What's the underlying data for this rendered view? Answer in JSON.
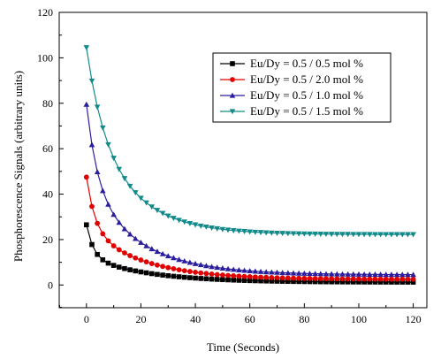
{
  "chart_data": {
    "type": "line",
    "xlabel": "Time (Seconds)",
    "ylabel": "Phosphorescence Signals (arbitrary units)",
    "xlim": [
      -10,
      125
    ],
    "ylim": [
      -10,
      120
    ],
    "xticks": [
      0,
      20,
      40,
      60,
      80,
      100,
      120
    ],
    "yticks": [
      0,
      20,
      40,
      60,
      80,
      100,
      120
    ],
    "grid": false,
    "legend_position": "top-right",
    "sample_interval": 2,
    "x_range": [
      0,
      120
    ],
    "series": [
      {
        "name": "Eu/Dy = 0.5 / 0.5 mol %",
        "color": "#000000",
        "marker": "square",
        "y0": 26.5,
        "asymptote": 1.2,
        "amp_fast": 14,
        "tau_fast": 2.5,
        "amp_slow": 11.3,
        "tau_slow": 22
      },
      {
        "name": "Eu/Dy = 0.5 / 2.0 mol %",
        "color": "#e00000",
        "marker": "circle",
        "y0": 47.5,
        "asymptote": 2.5,
        "amp_fast": 22,
        "tau_fast": 3,
        "amp_slow": 23,
        "tau_slow": 20
      },
      {
        "name": "Eu/Dy = 0.5 / 1.0 mol %",
        "color": "#2a1e9e",
        "marker": "triangle-up",
        "y0": 79.5,
        "asymptote": 4.5,
        "amp_fast": 35,
        "tau_fast": 4,
        "amp_slow": 40,
        "tau_slow": 19
      },
      {
        "name": "Eu/Dy = 0.5 / 1.5 mol %",
        "color": "#138a8a",
        "marker": "triangle-down",
        "y0": 104.5,
        "asymptote": 22.2,
        "amp_fast": 30,
        "tau_fast": 6,
        "amp_slow": 52.3,
        "tau_slow": 16
      }
    ]
  }
}
